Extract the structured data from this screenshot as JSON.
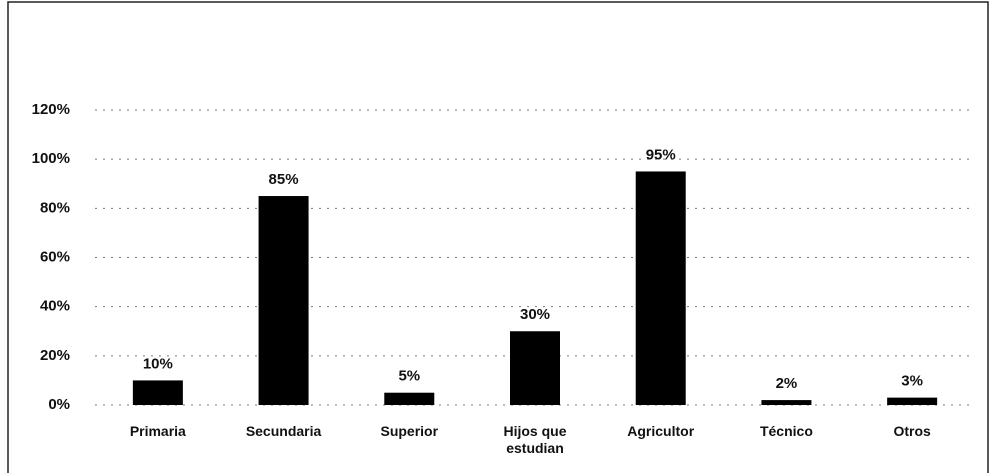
{
  "chart_data": {
    "type": "bar",
    "categories": [
      "Primaria",
      "Secundaria",
      "Superior",
      "Hijos que estudian",
      "Agricultor",
      "Técnico",
      "Otros"
    ],
    "values": [
      10,
      85,
      5,
      30,
      95,
      2,
      3
    ],
    "value_labels": [
      "10%",
      "85%",
      "5%",
      "30%",
      "95%",
      "2%",
      "3%"
    ],
    "color": "#000000",
    "ylim": [
      0,
      120
    ],
    "yticks": [
      {
        "value": 0,
        "label": "0%"
      },
      {
        "value": 20,
        "label": "20%"
      },
      {
        "value": 40,
        "label": "40%"
      },
      {
        "value": 60,
        "label": "60%"
      },
      {
        "value": 80,
        "label": "80%"
      },
      {
        "value": 100,
        "label": "100%"
      },
      {
        "value": 120,
        "label": "120%"
      }
    ],
    "grid": true
  }
}
